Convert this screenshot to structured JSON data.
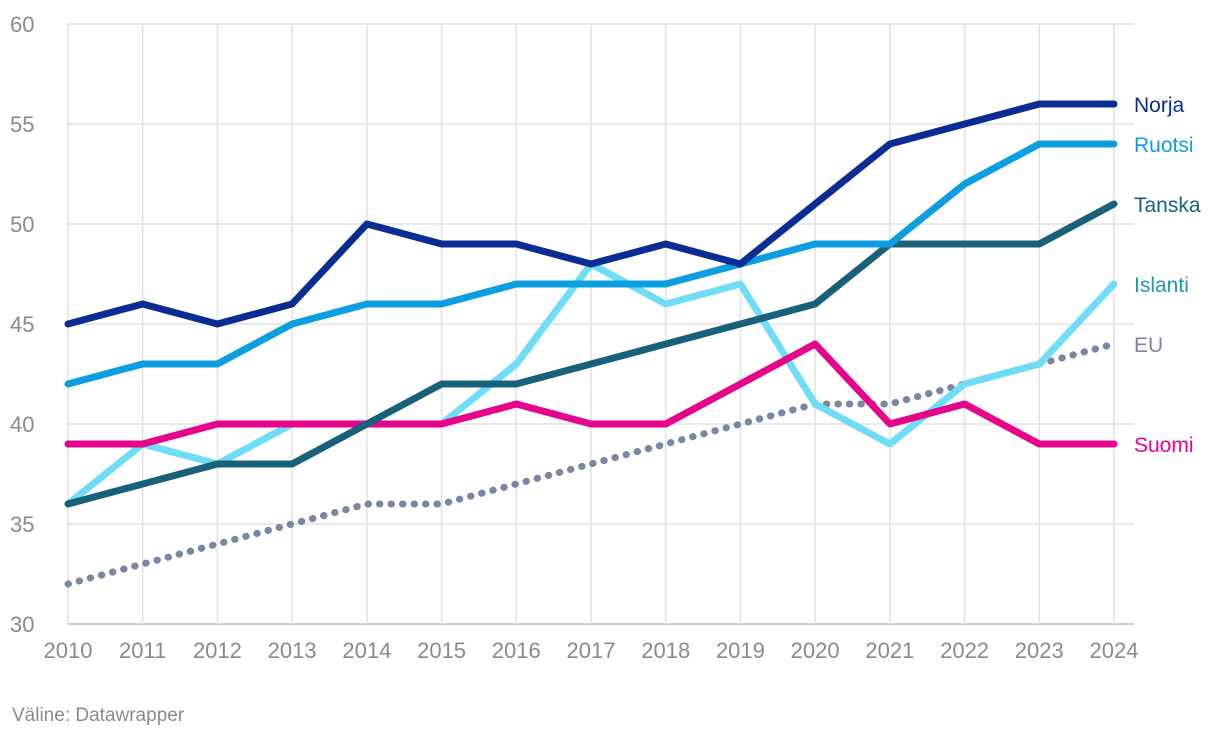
{
  "chart_data": {
    "type": "line",
    "x": [
      2010,
      2011,
      2012,
      2013,
      2014,
      2015,
      2016,
      2017,
      2018,
      2019,
      2020,
      2021,
      2022,
      2023,
      2024
    ],
    "ylim": [
      30,
      60
    ],
    "yticks": [
      30,
      35,
      40,
      45,
      50,
      55,
      60
    ],
    "grid": true,
    "legend": "right, inline labels at line ends",
    "series": [
      {
        "name": "EU",
        "color": "#7a86a3",
        "dotted": true,
        "values": [
          32,
          33,
          34,
          35,
          36,
          36,
          37,
          38,
          39,
          40,
          41,
          41,
          42,
          43,
          44
        ]
      },
      {
        "name": "Islanti",
        "color": "#6fdcf8",
        "label_color": "#1d99b5",
        "dotted": false,
        "values": [
          36,
          39,
          38,
          40,
          40,
          40,
          43,
          48,
          46,
          47,
          41,
          39,
          42,
          43,
          47
        ]
      },
      {
        "name": "Suomi",
        "color": "#e6058a",
        "dotted": false,
        "values": [
          39,
          39,
          40,
          40,
          40,
          40,
          41,
          40,
          40,
          42,
          44,
          40,
          41,
          39,
          39
        ]
      },
      {
        "name": "Tanska",
        "color": "#19607a",
        "dotted": false,
        "values": [
          36,
          37,
          38,
          38,
          40,
          42,
          42,
          43,
          44,
          45,
          46,
          49,
          49,
          49,
          51
        ]
      },
      {
        "name": "Ruotsi",
        "color": "#0b9ee0",
        "dotted": false,
        "values": [
          42,
          43,
          43,
          45,
          46,
          46,
          47,
          47,
          47,
          48,
          49,
          49,
          52,
          54,
          54
        ]
      },
      {
        "name": "Norja",
        "color": "#0a2d94",
        "dotted": false,
        "values": [
          45,
          46,
          45,
          46,
          50,
          49,
          49,
          48,
          49,
          48,
          51,
          54,
          55,
          56,
          56
        ]
      }
    ]
  },
  "source": "Väline: Datawrapper"
}
